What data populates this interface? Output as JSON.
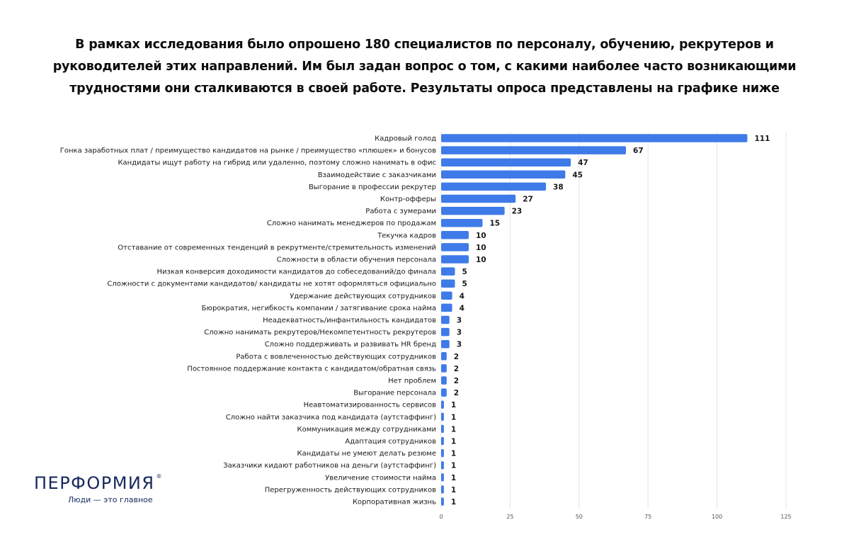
{
  "headline": {
    "lines": [
      "В рамках исследования было опрошено 180 специалистов по персоналу, обучению, рекрутеров и",
      "руководителей этих направлений. Им был задан вопрос о том, с какими наиболее часто возникающими",
      "трудностями они сталкиваются в своей работе. Результаты опроса представлены на графике ниже"
    ]
  },
  "logo": {
    "name": "ПЕРФОРМИЯ",
    "registered": "®",
    "tagline": "Люди — это главное"
  },
  "colors": {
    "bar": "#3f7be8",
    "gridline": "#e4e4e4"
  },
  "chart_data": {
    "type": "bar",
    "orientation": "horizontal",
    "title": "",
    "xlabel": "",
    "ylabel": "",
    "xlim": [
      0,
      125
    ],
    "xticks": [
      0,
      25,
      50,
      75,
      100,
      125
    ],
    "grid": true,
    "categories": [
      "Кадровый голод",
      "Гонка заработных плат / преимущество кандидатов на рынке / преимущество «плюшек» и бонусов",
      "Кандидаты ищут работу на гибрид или удаленно, поэтому сложно нанимать в офис",
      "Взаимодействие с заказчиками",
      "Выгорание в профессии рекрутер",
      "Контр-офферы",
      "Работа с зумерами",
      "Сложно нанимать менеджеров по продажам",
      "Текучка кадров",
      "Отставание от современных тенденций в рекрутменте/стремительность изменений",
      "Сложности в области обучения персонала",
      "Низкая конверсия доходимости кандидатов до собеседований/до финала",
      "Сложности с документами кандидатов/ кандидаты не хотят оформляться официально",
      "Удержание действующих сотрудников",
      "Бюрократия, негибкость компании / затягивание срока найма",
      "Неадекватность/инфантильность кандидатов",
      "Сложно нанимать рекрутеров/Некомпетентность рекрутеров",
      "Сложно поддерживать и развивать HR бренд",
      "Работа с вовлеченностью действующих сотрудников",
      "Постоянное поддержание контакта с кандидатом/обратная связь",
      "Нет проблем",
      "Выгорание персонала",
      "Неавтоматизированность сервисов",
      "Сложно найти заказчика под кандидата (аутстаффинг)",
      "Коммуникация между сотрудниками",
      "Адаптация сотрудников",
      "Кандидаты не умеют делать резюме",
      "Заказчики кидают работников на деньги (аутстаффинг)",
      "Увеличение стоимости найма",
      "Перегруженность действующих сотрудников",
      "Корпоративная жизнь"
    ],
    "values": [
      111,
      67,
      47,
      45,
      38,
      27,
      23,
      15,
      10,
      10,
      10,
      5,
      5,
      4,
      4,
      3,
      3,
      3,
      2,
      2,
      2,
      2,
      1,
      1,
      1,
      1,
      1,
      1,
      1,
      1,
      1
    ]
  }
}
